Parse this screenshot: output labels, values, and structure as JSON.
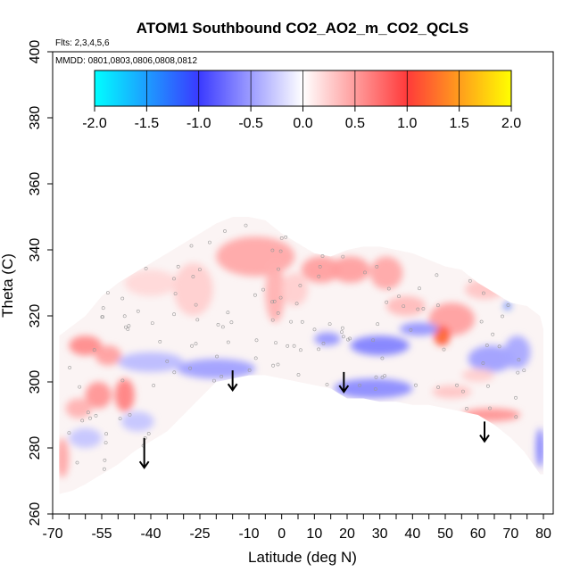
{
  "chart_data": {
    "type": "heatmap",
    "title": "ATOM1 Southbound CO2_AO2_m_CO2_QCLS",
    "flights_text": "Flts: 2,3,4,5,6",
    "dates_text": "MMDD: 0801,0803,0806,0808,0812",
    "xlabel": "Latitude (deg N)",
    "ylabel": "Theta (C)",
    "xlim": [
      -70,
      83
    ],
    "ylim": [
      260,
      400
    ],
    "x_ticks": [
      -70,
      -65,
      -60,
      -55,
      -50,
      -45,
      -40,
      -35,
      -30,
      -25,
      -20,
      -15,
      -10,
      -5,
      0,
      5,
      10,
      15,
      20,
      25,
      30,
      35,
      40,
      45,
      50,
      55,
      60,
      65,
      70,
      75,
      80
    ],
    "x_tick_labels": [
      {
        "value": -70,
        "label": "-70"
      },
      {
        "value": -55,
        "label": "-55"
      },
      {
        "value": -40,
        "label": "-40"
      },
      {
        "value": -25,
        "label": "-25"
      },
      {
        "value": -10,
        "label": "-10"
      },
      {
        "value": 0,
        "label": "0"
      },
      {
        "value": 10,
        "label": "10"
      },
      {
        "value": 20,
        "label": "20"
      },
      {
        "value": 30,
        "label": "30"
      },
      {
        "value": 40,
        "label": "40"
      },
      {
        "value": 50,
        "label": "50"
      },
      {
        "value": 60,
        "label": "60"
      },
      {
        "value": 70,
        "label": "70"
      },
      {
        "value": 80,
        "label": "80"
      }
    ],
    "y_ticks": [
      260,
      280,
      300,
      320,
      340,
      360,
      380,
      400
    ],
    "y_tick_labels": [
      "260",
      "280",
      "300",
      "320",
      "340",
      "360",
      "380",
      "400"
    ],
    "colorbar": {
      "min": -2.0,
      "max": 2.0,
      "ticks": [
        -2.0,
        -1.5,
        -1.0,
        -0.5,
        0.0,
        0.5,
        1.0,
        1.5,
        2.0
      ],
      "tick_labels": [
        "-2.0",
        "-1.5",
        "-1.0",
        "-0.5",
        "0.0",
        "0.5",
        "1.0",
        "1.5",
        "2.0"
      ],
      "colors": [
        "#00ffff",
        "#3a3aff",
        "#ffffff",
        "#ff3a3a",
        "#ffff00"
      ]
    },
    "data_envelope_top": [
      [
        -68,
        314
      ],
      [
        -64,
        317
      ],
      [
        -60,
        320
      ],
      [
        -55,
        326
      ],
      [
        -50,
        330
      ],
      [
        -45,
        333
      ],
      [
        -40,
        336
      ],
      [
        -35,
        339
      ],
      [
        -30,
        342
      ],
      [
        -25,
        345
      ],
      [
        -20,
        348
      ],
      [
        -15,
        350
      ],
      [
        -10,
        350
      ],
      [
        -5,
        349
      ],
      [
        0,
        345
      ],
      [
        5,
        342
      ],
      [
        10,
        339
      ],
      [
        15,
        338
      ],
      [
        20,
        340
      ],
      [
        25,
        341
      ],
      [
        30,
        341
      ],
      [
        35,
        340
      ],
      [
        40,
        339
      ],
      [
        45,
        337
      ],
      [
        50,
        335
      ],
      [
        55,
        334
      ],
      [
        60,
        330
      ],
      [
        65,
        327
      ],
      [
        70,
        324
      ],
      [
        75,
        323
      ],
      [
        79,
        320
      ],
      [
        80,
        316
      ],
      [
        80,
        310
      ]
    ],
    "data_envelope_bottom": [
      [
        80,
        295
      ],
      [
        80,
        272
      ],
      [
        79,
        272
      ],
      [
        74,
        279
      ],
      [
        70,
        283
      ],
      [
        65,
        287
      ],
      [
        60,
        290
      ],
      [
        55,
        291
      ],
      [
        50,
        292
      ],
      [
        45,
        293
      ],
      [
        40,
        293
      ],
      [
        35,
        294
      ],
      [
        30,
        294
      ],
      [
        25,
        295
      ],
      [
        20,
        295
      ],
      [
        15,
        298
      ],
      [
        10,
        299
      ],
      [
        5,
        300
      ],
      [
        0,
        301
      ],
      [
        -5,
        302
      ],
      [
        -10,
        302
      ],
      [
        -15,
        301
      ],
      [
        -20,
        300
      ],
      [
        -25,
        295
      ],
      [
        -30,
        290
      ],
      [
        -35,
        285
      ],
      [
        -40,
        282
      ],
      [
        -45,
        279
      ],
      [
        -50,
        275
      ],
      [
        -55,
        272
      ],
      [
        -60,
        269
      ],
      [
        -64,
        267
      ],
      [
        -68,
        266
      ]
    ],
    "anomaly_blobs": [
      {
        "lat": -40,
        "theta": 330,
        "rx": 8,
        "ry": 4,
        "value": 0.2
      },
      {
        "lat": -27,
        "theta": 328,
        "rx": 6,
        "ry": 8,
        "value": 0.25
      },
      {
        "lat": -8,
        "theta": 338,
        "rx": 12,
        "ry": 6,
        "value": 0.45
      },
      {
        "lat": -2,
        "theta": 327,
        "rx": 3,
        "ry": 9,
        "value": 0.4
      },
      {
        "lat": 4,
        "theta": 328,
        "rx": 4,
        "ry": 5,
        "value": 0.25
      },
      {
        "lat": 12,
        "theta": 334,
        "rx": 6,
        "ry": 4,
        "value": 0.5
      },
      {
        "lat": 21,
        "theta": 334,
        "rx": 6,
        "ry": 4,
        "value": 0.5
      },
      {
        "lat": 32,
        "theta": 333,
        "rx": 5,
        "ry": 5,
        "value": 0.45
      },
      {
        "lat": 38,
        "theta": 323,
        "rx": 6,
        "ry": 3,
        "value": 0.35
      },
      {
        "lat": 52,
        "theta": 319,
        "rx": 7,
        "ry": 5,
        "value": 0.5
      },
      {
        "lat": 62,
        "theta": 328,
        "rx": 6,
        "ry": 3,
        "value": 0.3
      },
      {
        "lat": 49,
        "theta": 314,
        "rx": 2.5,
        "ry": 3,
        "value": 1.1
      },
      {
        "lat": 49,
        "theta": 314,
        "rx": 1,
        "ry": 1,
        "value": 1.4
      },
      {
        "lat": -60,
        "theta": 311,
        "rx": 5,
        "ry": 3,
        "value": 0.6
      },
      {
        "lat": -53,
        "theta": 308,
        "rx": 4,
        "ry": 3,
        "value": 0.5
      },
      {
        "lat": -56,
        "theta": 296,
        "rx": 4,
        "ry": 4,
        "value": 0.55
      },
      {
        "lat": -48,
        "theta": 296,
        "rx": 3,
        "ry": 5,
        "value": 0.65
      },
      {
        "lat": -62,
        "theta": 292,
        "rx": 4,
        "ry": 3,
        "value": 0.4
      },
      {
        "lat": -67,
        "theta": 277,
        "rx": 2,
        "ry": 6,
        "value": 0.45
      },
      {
        "lat": 64,
        "theta": 290,
        "rx": 9,
        "ry": 2,
        "value": 0.55
      },
      {
        "lat": 52,
        "theta": 297,
        "rx": 6,
        "ry": 2,
        "value": 0.3
      },
      {
        "lat": -20,
        "theta": 304,
        "rx": 12,
        "ry": 3,
        "value": -0.5
      },
      {
        "lat": -40,
        "theta": 306,
        "rx": 10,
        "ry": 3,
        "value": -0.35
      },
      {
        "lat": 28,
        "theta": 298,
        "rx": 12,
        "ry": 3,
        "value": -0.6
      },
      {
        "lat": 30,
        "theta": 311,
        "rx": 9,
        "ry": 3,
        "value": -0.65
      },
      {
        "lat": 14,
        "theta": 313,
        "rx": 4,
        "ry": 2,
        "value": -0.55
      },
      {
        "lat": 42,
        "theta": 316,
        "rx": 6,
        "ry": 2,
        "value": -0.55
      },
      {
        "lat": 64,
        "theta": 307,
        "rx": 7,
        "ry": 4,
        "value": -0.5
      },
      {
        "lat": 72,
        "theta": 309,
        "rx": 4,
        "ry": 5,
        "value": -0.45
      },
      {
        "lat": 69,
        "theta": 323,
        "rx": 1,
        "ry": 1,
        "value": -1.2
      },
      {
        "lat": 79,
        "theta": 280,
        "rx": 1.2,
        "ry": 6,
        "value": -0.7
      },
      {
        "lat": -60,
        "theta": 283,
        "rx": 5,
        "ry": 3,
        "value": -0.3
      },
      {
        "lat": -44,
        "theta": 288,
        "rx": 5,
        "ry": 3,
        "value": -0.3
      },
      {
        "lat": 60,
        "theta": 302,
        "rx": 5,
        "ry": 2,
        "value": 0.25
      }
    ],
    "arrows": [
      {
        "lat": -42,
        "theta_top": 283,
        "theta_bottom": 274
      },
      {
        "lat": -15,
        "theta_top": 303.5,
        "theta_bottom": 297.5
      },
      {
        "lat": 19,
        "theta_top": 303,
        "theta_bottom": 297
      },
      {
        "lat": 62,
        "theta_top": 288,
        "theta_bottom": 282
      }
    ]
  }
}
